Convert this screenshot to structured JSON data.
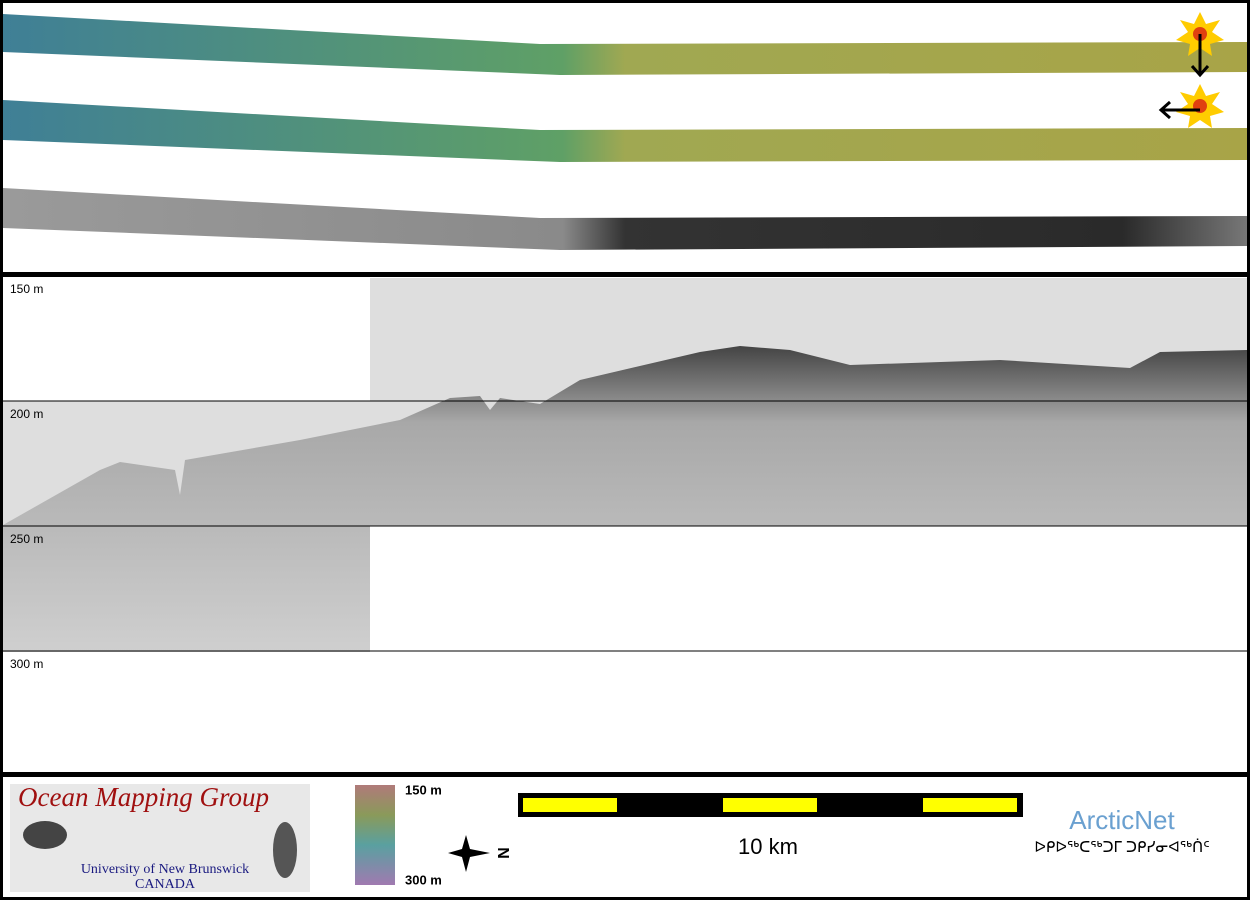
{
  "profile": {
    "depth_labels": [
      "150 m",
      "200 m",
      "250 m",
      "300 m"
    ]
  },
  "footer": {
    "group_title": "Ocean Mapping Group",
    "university": "University of New Brunswick",
    "country": "CANADA",
    "colorbar_top": "150 m",
    "colorbar_bottom": "300 m",
    "north": "N",
    "scale_label": "10 km",
    "partner": "ArcticNet",
    "partner_syllabics": "ᐅᑭᐅᖅᑕᖅᑐᒥ ᑐᑭᓯᓂᐊᖅᑏᑦ"
  }
}
